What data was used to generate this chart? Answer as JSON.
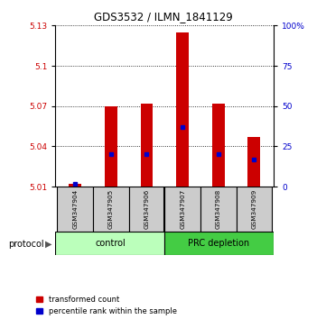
{
  "title": "GDS3532 / ILMN_1841129",
  "samples": [
    "GSM347904",
    "GSM347905",
    "GSM347906",
    "GSM347907",
    "GSM347908",
    "GSM347909"
  ],
  "ylim_left": [
    5.01,
    5.13
  ],
  "yticks_left": [
    5.01,
    5.04,
    5.07,
    5.1,
    5.13
  ],
  "ylim_right": [
    0,
    100
  ],
  "yticks_right": [
    0,
    25,
    50,
    75,
    100
  ],
  "yticklabels_right": [
    "0",
    "25",
    "50",
    "75",
    "100%"
  ],
  "bar_base": 5.01,
  "bar_tops": [
    5.012,
    5.07,
    5.072,
    5.125,
    5.072,
    5.047
  ],
  "percentile_ranks": [
    2.0,
    20.0,
    20.0,
    37.0,
    20.0,
    17.0
  ],
  "bar_color": "#cc0000",
  "percentile_color": "#0000cc",
  "label_color_left": "#cc0000",
  "label_color_right": "#0000cc",
  "bar_width": 0.35,
  "ctrl_color": "#bbffbb",
  "prc_color": "#44cc44",
  "sample_box_color": "#cccccc"
}
